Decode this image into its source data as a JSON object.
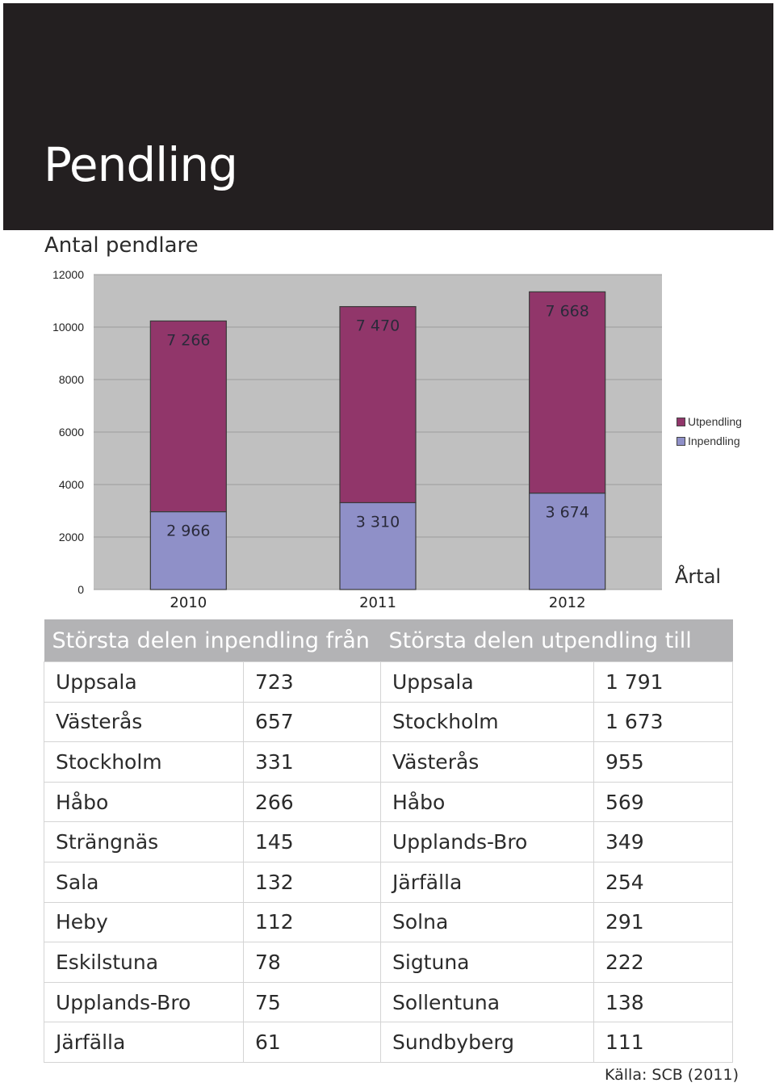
{
  "page": {
    "title": "Pendling"
  },
  "chart_data": {
    "type": "bar",
    "stacked": true,
    "title": "Antal pendlare",
    "xlabel": "Årtal",
    "ylabel": "",
    "categories": [
      "2010",
      "2011",
      "2012"
    ],
    "series": [
      {
        "name": "Inpendling",
        "values": [
          2966,
          3310,
          3674
        ],
        "labels": [
          "2 966",
          "3 310",
          "3 674"
        ],
        "color": "#8f90c8"
      },
      {
        "name": "Utpendling",
        "values": [
          7266,
          7470,
          7668
        ],
        "labels": [
          "7 266",
          "7 470",
          "7 668"
        ],
        "color": "#91366a"
      }
    ],
    "ylim": [
      0,
      12000
    ],
    "yticks": [
      0,
      2000,
      4000,
      6000,
      8000,
      10000,
      12000
    ],
    "grid": true,
    "legend": "right",
    "plot_background": "#c0c0c0",
    "legend_order": [
      "Utpendling",
      "Inpendling"
    ]
  },
  "table": {
    "headers": {
      "inpendling": "Största delen inpendling från",
      "utpendling": "Största delen utpendling till"
    },
    "rows": [
      {
        "in_place": "Uppsala",
        "in_value": "723",
        "out_place": "Uppsala",
        "out_value": "1 791"
      },
      {
        "in_place": "Västerås",
        "in_value": "657",
        "out_place": "Stockholm",
        "out_value": "1 673"
      },
      {
        "in_place": "Stockholm",
        "in_value": "331",
        "out_place": "Västerås",
        "out_value": "955"
      },
      {
        "in_place": "Håbo",
        "in_value": "266",
        "out_place": "Håbo",
        "out_value": "569"
      },
      {
        "in_place": "Strängnäs",
        "in_value": "145",
        "out_place": "Upplands-Bro",
        "out_value": "349"
      },
      {
        "in_place": "Sala",
        "in_value": "132",
        "out_place": "Järfälla",
        "out_value": "254"
      },
      {
        "in_place": "Heby",
        "in_value": "112",
        "out_place": "Solna",
        "out_value": "291"
      },
      {
        "in_place": "Eskilstuna",
        "in_value": "78",
        "out_place": "Sigtuna",
        "out_value": "222"
      },
      {
        "in_place": "Upplands-Bro",
        "in_value": "75",
        "out_place": "Sollentuna",
        "out_value": "138"
      },
      {
        "in_place": "Järfälla",
        "in_value": "61",
        "out_place": "Sundbyberg",
        "out_value": "111"
      }
    ]
  },
  "source": "Källa: SCB (2011)"
}
